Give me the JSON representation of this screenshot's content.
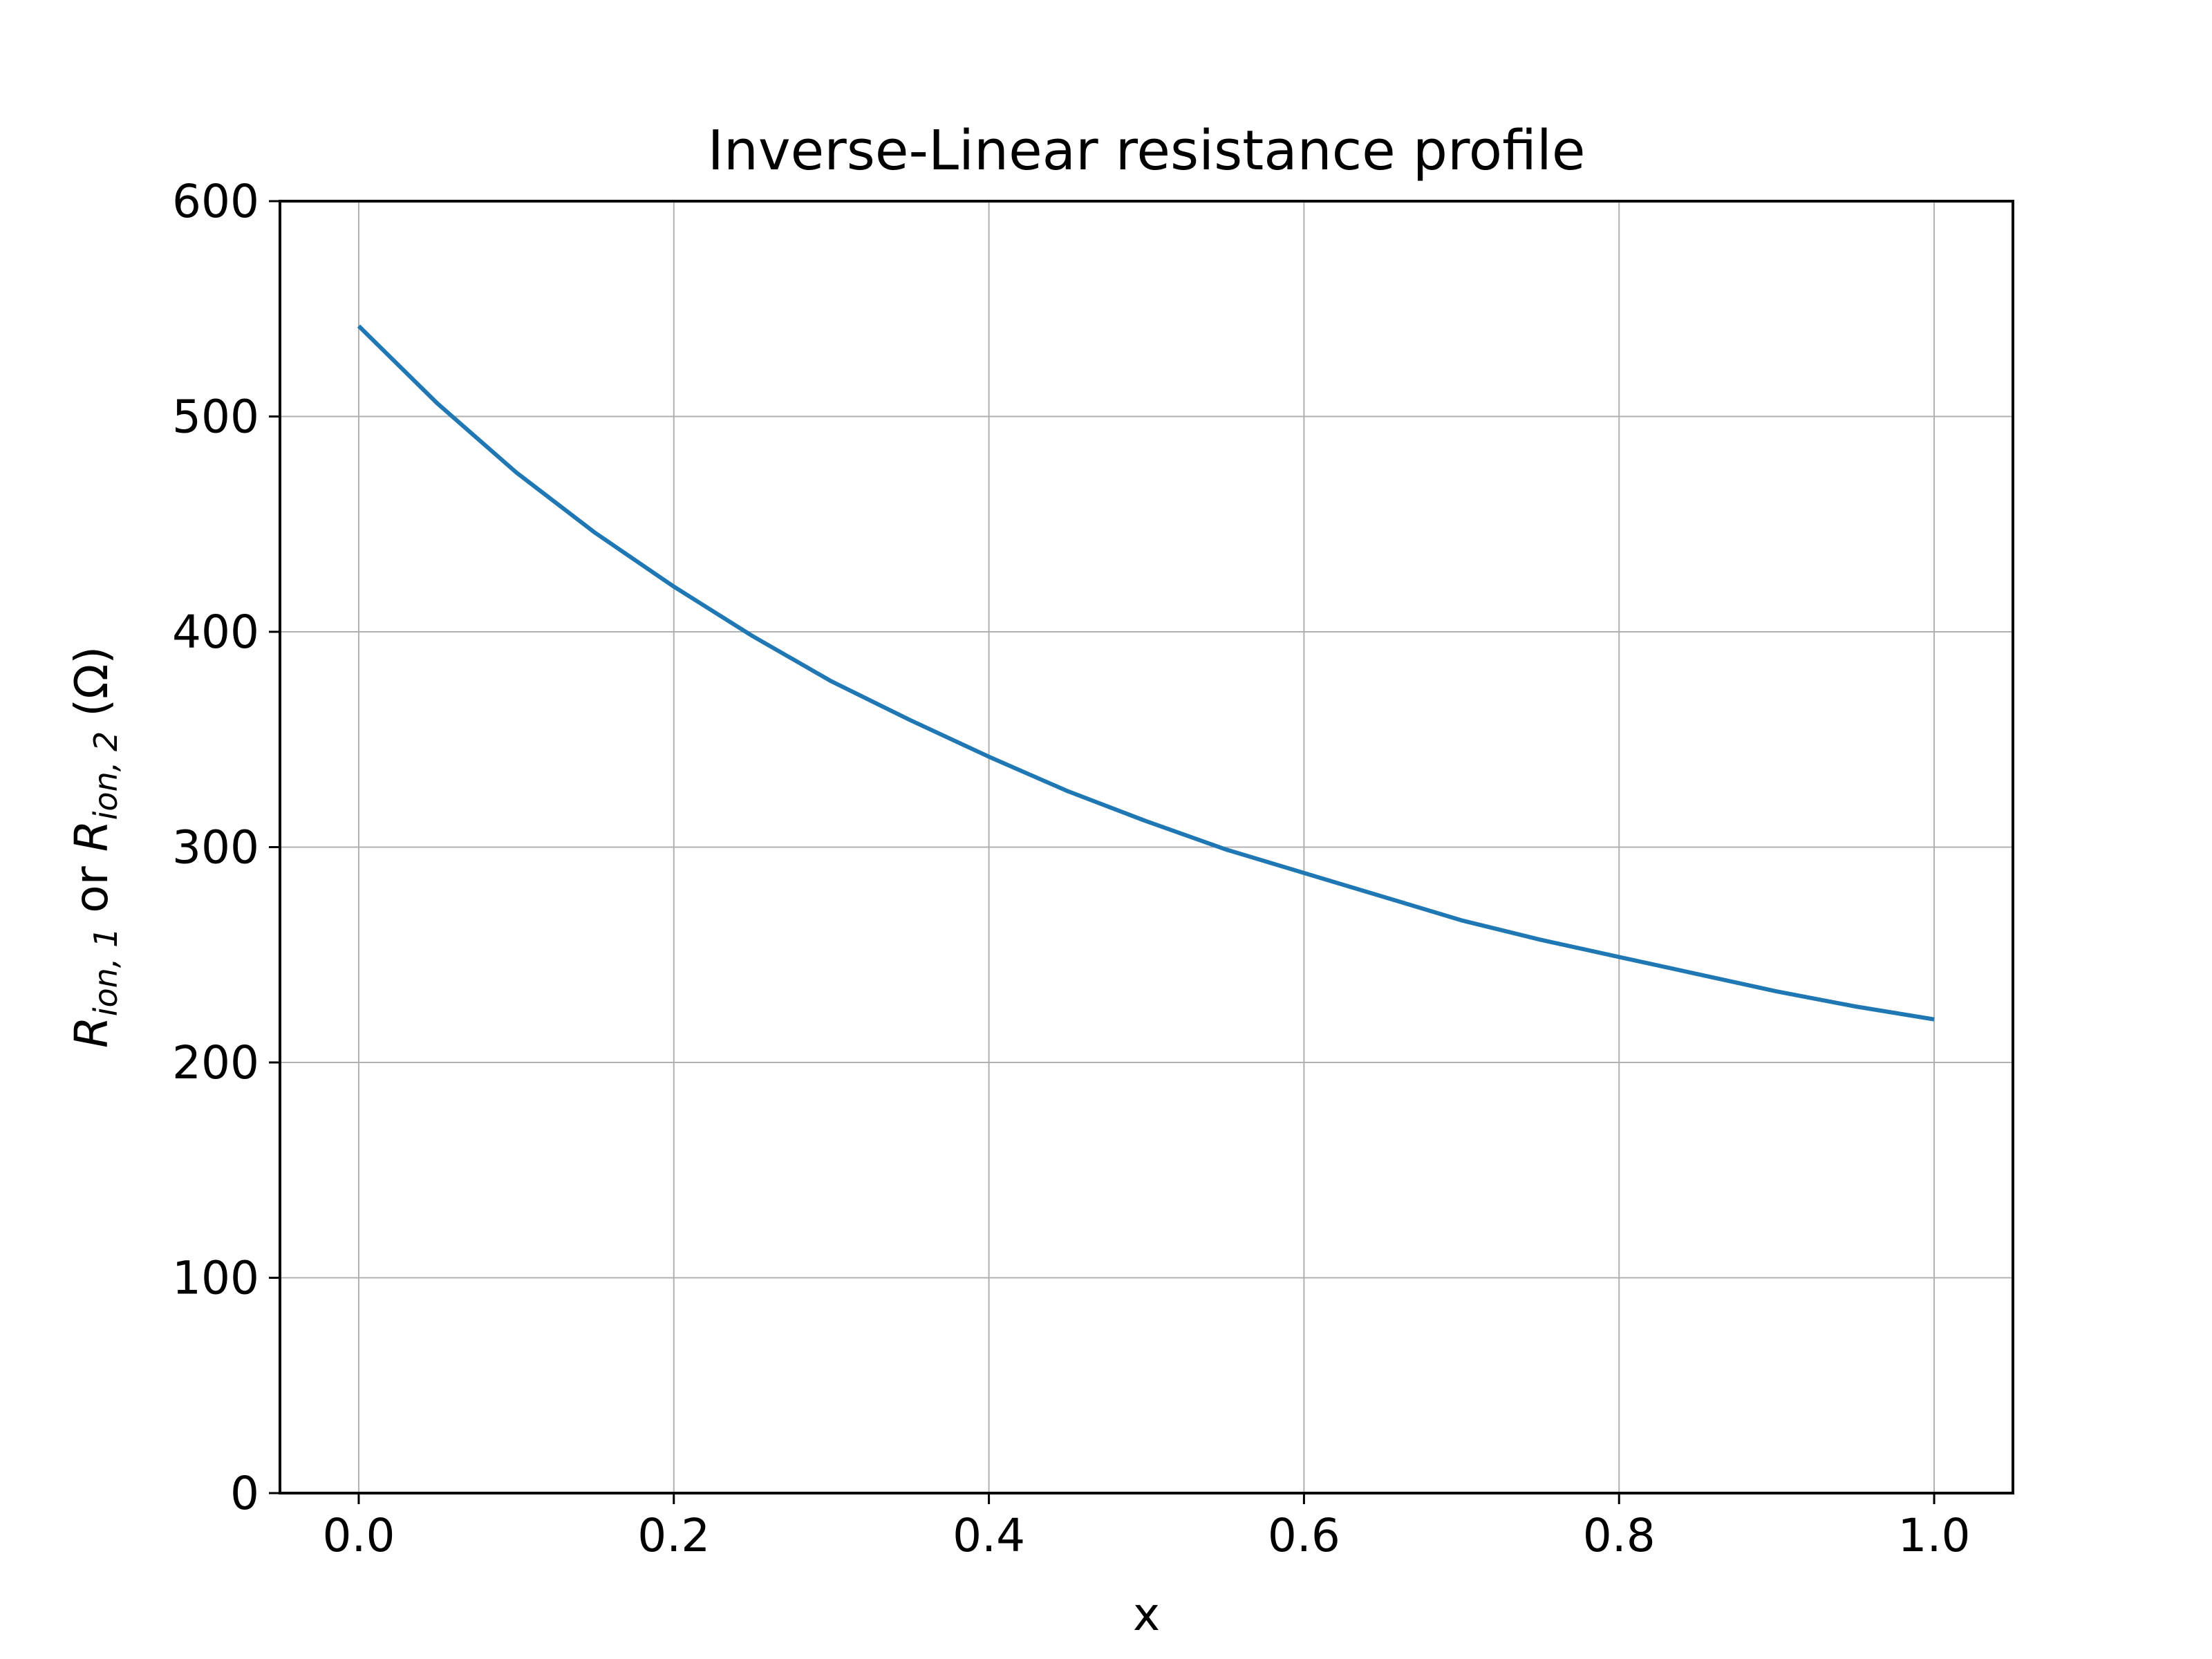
{
  "chart_data": {
    "type": "line",
    "title": "Inverse-Linear resistance profile",
    "xlabel": "x",
    "ylabel": {
      "parts": [
        {
          "text": "R",
          "style": "italic"
        },
        {
          "text": "ion, 1",
          "style": "italic-sub"
        },
        {
          "text": " or ",
          "style": "normal"
        },
        {
          "text": "R",
          "style": "italic"
        },
        {
          "text": "ion, 2",
          "style": "italic-sub"
        },
        {
          "text": " (Ω)",
          "style": "normal"
        }
      ]
    },
    "xlim": [
      -0.05,
      1.05
    ],
    "ylim": [
      0,
      600
    ],
    "xticks": [
      0.0,
      0.2,
      0.4,
      0.6,
      0.8,
      1.0
    ],
    "xtick_labels": [
      "0.0",
      "0.2",
      "0.4",
      "0.6",
      "0.8",
      "1.0"
    ],
    "yticks": [
      0,
      100,
      200,
      300,
      400,
      500,
      600
    ],
    "ytick_labels": [
      "0",
      "100",
      "200",
      "300",
      "400",
      "500",
      "600"
    ],
    "grid": true,
    "series": [
      {
        "color": "#1f77b4",
        "x": [
          0.0,
          0.05,
          0.1,
          0.15,
          0.2,
          0.25,
          0.3,
          0.35,
          0.4,
          0.45,
          0.5,
          0.55,
          0.6,
          0.65,
          0.7,
          0.75,
          0.8,
          0.85,
          0.9,
          0.95,
          1.0
        ],
        "y": [
          542,
          506,
          474,
          446,
          421,
          398,
          377,
          359,
          342,
          326,
          312,
          299,
          288,
          277,
          266,
          257,
          249,
          241,
          233,
          226,
          220
        ]
      }
    ]
  }
}
